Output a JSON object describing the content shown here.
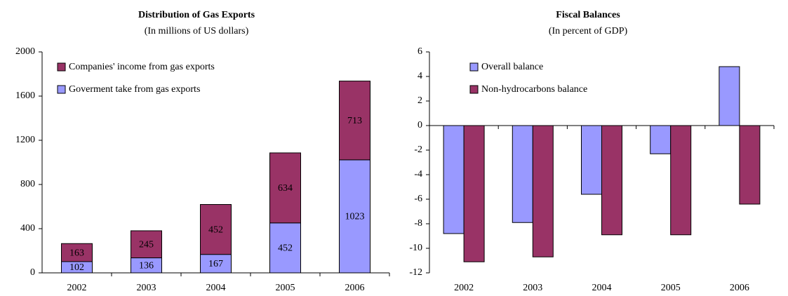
{
  "chart_data": [
    {
      "type": "stacked_bar",
      "title": "Distribution of Gas Exports",
      "subtitle": "(In millions of US dollars)",
      "categories": [
        "2002",
        "2003",
        "2004",
        "2005",
        "2006"
      ],
      "series": [
        {
          "name": "Goverment take from gas exports",
          "color": "#9999ff",
          "values": [
            102,
            136,
            167,
            452,
            1023
          ]
        },
        {
          "name": "Companies' income from gas exports",
          "color": "#993366",
          "values": [
            163,
            245,
            452,
            634,
            713
          ]
        }
      ],
      "ylim": [
        0,
        2000
      ],
      "yticks": [
        0,
        400,
        800,
        1200,
        1600,
        2000
      ],
      "legend": "upper left",
      "data_labels": true
    },
    {
      "type": "bar",
      "title": "Fiscal Balances",
      "subtitle": "(In percent of GDP)",
      "categories": [
        "2002",
        "2003",
        "2004",
        "2005",
        "2006"
      ],
      "series": [
        {
          "name": "Overall balance",
          "color": "#9999ff",
          "values": [
            -8.8,
            -7.9,
            -5.6,
            -2.3,
            4.8
          ]
        },
        {
          "name": "Non-hydrocarbons balance",
          "color": "#993366",
          "values": [
            -11.1,
            -10.7,
            -8.9,
            -8.9,
            -6.4
          ]
        }
      ],
      "ylim": [
        -12,
        6
      ],
      "yticks": [
        -12,
        -10,
        -8,
        -6,
        -4,
        -2,
        0,
        2,
        4,
        6
      ],
      "legend": "upper left",
      "data_labels": false
    }
  ]
}
